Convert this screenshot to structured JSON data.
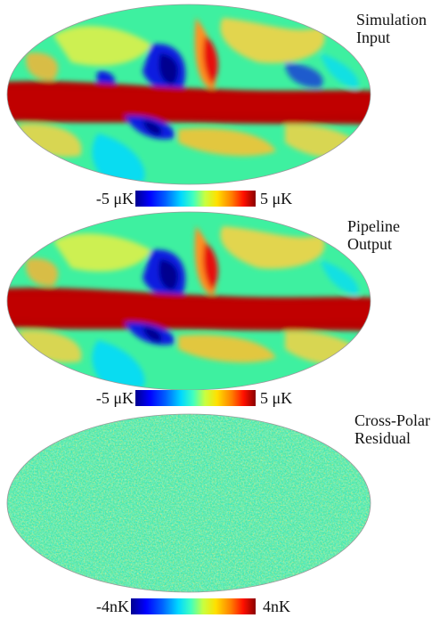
{
  "panels": [
    {
      "id": "input",
      "caption_lines": [
        "Simulation",
        "Input"
      ],
      "colorbar": {
        "min_label": "-5 μK",
        "max_label": "5 μK"
      },
      "map_kind": "smooth"
    },
    {
      "id": "output",
      "caption_lines": [
        "Pipeline",
        "Output"
      ],
      "colorbar": {
        "min_label": "-5 μK",
        "max_label": "5 μK"
      },
      "map_kind": "smooth"
    },
    {
      "id": "residual",
      "caption_lines": [
        "Cross-Polar",
        "Residual"
      ],
      "colorbar": {
        "min_label": "-4nK",
        "max_label": "4nK"
      },
      "map_kind": "noise"
    }
  ],
  "colors": {
    "dark_blue": "#00008f",
    "blue": "#0a1ee0",
    "cyan": "#00d8ff",
    "green": "#3ef0a0",
    "yellow": "#f0f040",
    "orange": "#ff9020",
    "red": "#e81008",
    "dark_red": "#b80000"
  }
}
